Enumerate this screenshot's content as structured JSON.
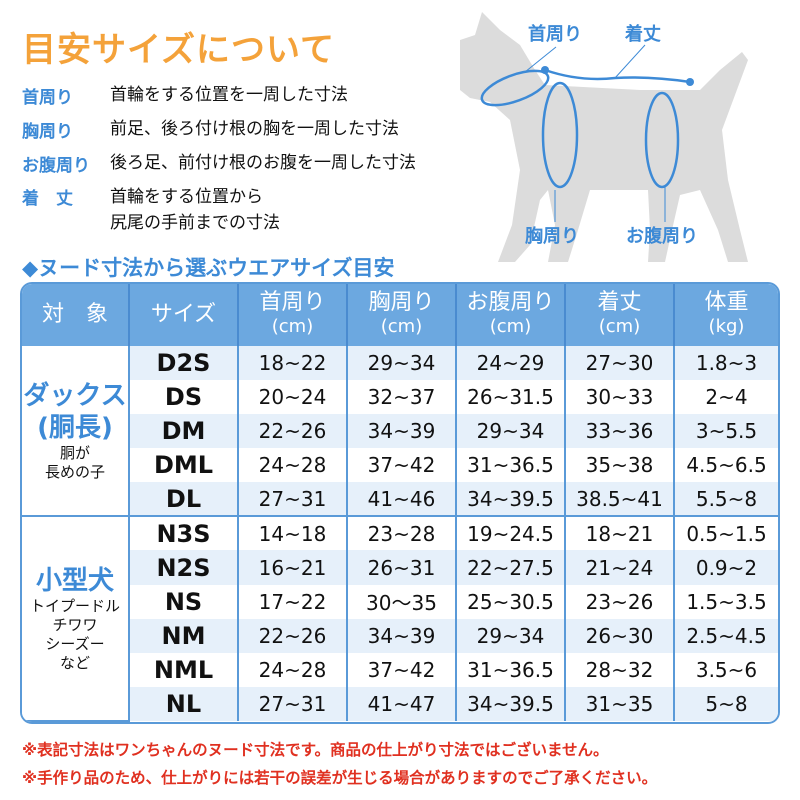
{
  "title": "目安サイズについて",
  "definitions": [
    {
      "term": "首周り",
      "desc": "首輪をする位置を一周した寸法"
    },
    {
      "term": "胸周り",
      "desc": "前足、後ろ付け根の胸を一周した寸法"
    },
    {
      "term": "お腹周り",
      "desc": "後ろ足、前付け根のお腹を一周した寸法"
    },
    {
      "term": "着　丈",
      "desc": "首輪をする位置から",
      "desc2": "尻尾の手前までの寸法"
    }
  ],
  "diagram": {
    "neck": "首周り",
    "length": "着丈",
    "chest": "胸周り",
    "belly": "お腹周り",
    "silhouette_color": "#dcdcdc",
    "line_color": "#3d8ad6"
  },
  "subtitle": "◆ヌード寸法から選ぶウエアサイズ目安",
  "table": {
    "headers": [
      {
        "label": "対　象"
      },
      {
        "label": "サイズ"
      },
      {
        "label": "首周り",
        "unit": "(cm)"
      },
      {
        "label": "胸周り",
        "unit": "(cm)"
      },
      {
        "label": "お腹周り",
        "unit": "(cm)"
      },
      {
        "label": "着丈",
        "unit": "(cm)"
      },
      {
        "label": "体重",
        "unit": "(kg)"
      }
    ],
    "groups": [
      {
        "main": "ダックス",
        "main2": "(胴長)",
        "sub": [
          "胴が",
          "長めの子"
        ],
        "rows": [
          [
            "D2S",
            "18~22",
            "29~34",
            "24~29",
            "27~30",
            "1.8~3"
          ],
          [
            "DS",
            "20~24",
            "32~37",
            "26~31.5",
            "30~33",
            "2~4"
          ],
          [
            "DM",
            "22~26",
            "34~39",
            "29~34",
            "33~36",
            "3~5.5"
          ],
          [
            "DML",
            "24~28",
            "37~42",
            "31~36.5",
            "35~38",
            "4.5~6.5"
          ],
          [
            "DL",
            "27~31",
            "41~46",
            "34~39.5",
            "38.5~41",
            "5.5~8"
          ]
        ]
      },
      {
        "main": "小型犬",
        "main2": "",
        "sub": [
          "トイプードル",
          "チワワ",
          "シーズー",
          "など"
        ],
        "rows": [
          [
            "N3S",
            "14~18",
            "23~28",
            "19~24.5",
            "18~21",
            "0.5~1.5"
          ],
          [
            "N2S",
            "16~21",
            "26~31",
            "22~27.5",
            "21~24",
            "0.9~2"
          ],
          [
            "NS",
            "17~22",
            "30〜35",
            "25~30.5",
            "23~26",
            "1.5~3.5"
          ],
          [
            "NM",
            "22~26",
            "34~39",
            "29~34",
            "26~30",
            "2.5~4.5"
          ],
          [
            "NML",
            "24~28",
            "37~42",
            "31~36.5",
            "28~32",
            "3.5~6"
          ],
          [
            "NL",
            "27~31",
            "41~47",
            "34~39.5",
            "31~35",
            "5~8"
          ]
        ]
      }
    ]
  },
  "notes": [
    "※表記寸法はワンちゃんのヌード寸法です。商品の仕上がり寸法ではございません。",
    "※手作り品のため、仕上がりには若干の誤差が生じる場合がありますのでご了承ください。"
  ],
  "colors": {
    "title": "#f4a23a",
    "accent": "#3d8ad6",
    "header_bg": "#6ca8e0",
    "zebra": "#e6f0fa",
    "note": "#e03020"
  }
}
